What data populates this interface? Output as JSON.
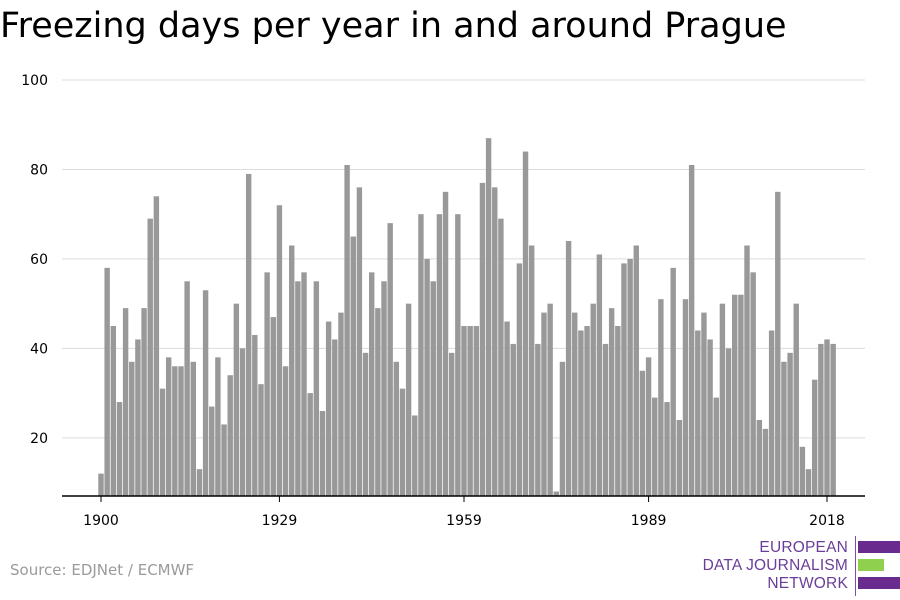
{
  "page": {
    "title": "Freezing days per year in and around Prague",
    "source": "Source: EDJNet / ECMWF"
  },
  "logo": {
    "line1": "EUROPEAN",
    "line2": "DATA JOURNALISM",
    "line3": "NETWORK",
    "colors": {
      "purple": "#6a2b8f",
      "green": "#8fd14f"
    }
  },
  "chart_data": {
    "type": "bar",
    "title": "Freezing days per year in and around Prague",
    "xlabel": "",
    "ylabel": "",
    "bar_color": "#999999",
    "grid": true,
    "ylim": [
      7,
      100
    ],
    "yticks": [
      20,
      40,
      60,
      80,
      100
    ],
    "xticks": [
      1900,
      1929,
      1959,
      1989,
      2018
    ],
    "x": [
      1900,
      1901,
      1902,
      1903,
      1904,
      1905,
      1906,
      1907,
      1908,
      1909,
      1910,
      1911,
      1912,
      1913,
      1914,
      1915,
      1916,
      1917,
      1918,
      1919,
      1920,
      1921,
      1922,
      1923,
      1924,
      1925,
      1926,
      1927,
      1928,
      1929,
      1930,
      1931,
      1932,
      1933,
      1934,
      1935,
      1936,
      1937,
      1938,
      1939,
      1940,
      1941,
      1942,
      1943,
      1944,
      1945,
      1946,
      1947,
      1948,
      1949,
      1950,
      1951,
      1952,
      1953,
      1954,
      1955,
      1956,
      1957,
      1958,
      1959,
      1960,
      1961,
      1962,
      1963,
      1964,
      1965,
      1966,
      1967,
      1968,
      1969,
      1970,
      1971,
      1972,
      1973,
      1974,
      1975,
      1976,
      1977,
      1978,
      1979,
      1980,
      1981,
      1982,
      1983,
      1984,
      1985,
      1986,
      1987,
      1988,
      1989,
      1990,
      1991,
      1992,
      1993,
      1994,
      1995,
      1996,
      1997,
      1998,
      1999,
      2000,
      2001,
      2002,
      2003,
      2004,
      2005,
      2006,
      2007,
      2008,
      2009,
      2010,
      2011,
      2012,
      2013,
      2014,
      2015,
      2016,
      2017,
      2018,
      2019
    ],
    "values": [
      12,
      58,
      45,
      28,
      49,
      37,
      42,
      49,
      69,
      74,
      31,
      38,
      36,
      36,
      55,
      37,
      13,
      53,
      27,
      38,
      23,
      34,
      50,
      40,
      79,
      43,
      32,
      57,
      47,
      72,
      36,
      63,
      55,
      57,
      30,
      55,
      26,
      46,
      42,
      48,
      81,
      65,
      76,
      39,
      57,
      49,
      55,
      68,
      37,
      31,
      50,
      25,
      70,
      60,
      55,
      70,
      75,
      39,
      70,
      45,
      45,
      45,
      77,
      87,
      76,
      69,
      46,
      41,
      59,
      84,
      63,
      41,
      48,
      50,
      8,
      37,
      64,
      48,
      44,
      45,
      50,
      61,
      41,
      49,
      45,
      59,
      60,
      63,
      35,
      38,
      29,
      51,
      28,
      58,
      24,
      51,
      81,
      44,
      48,
      42,
      29,
      50,
      40,
      52,
      52,
      63,
      57,
      24,
      22,
      44,
      75,
      37,
      39,
      50,
      18,
      13,
      33,
      41,
      42,
      41
    ]
  }
}
